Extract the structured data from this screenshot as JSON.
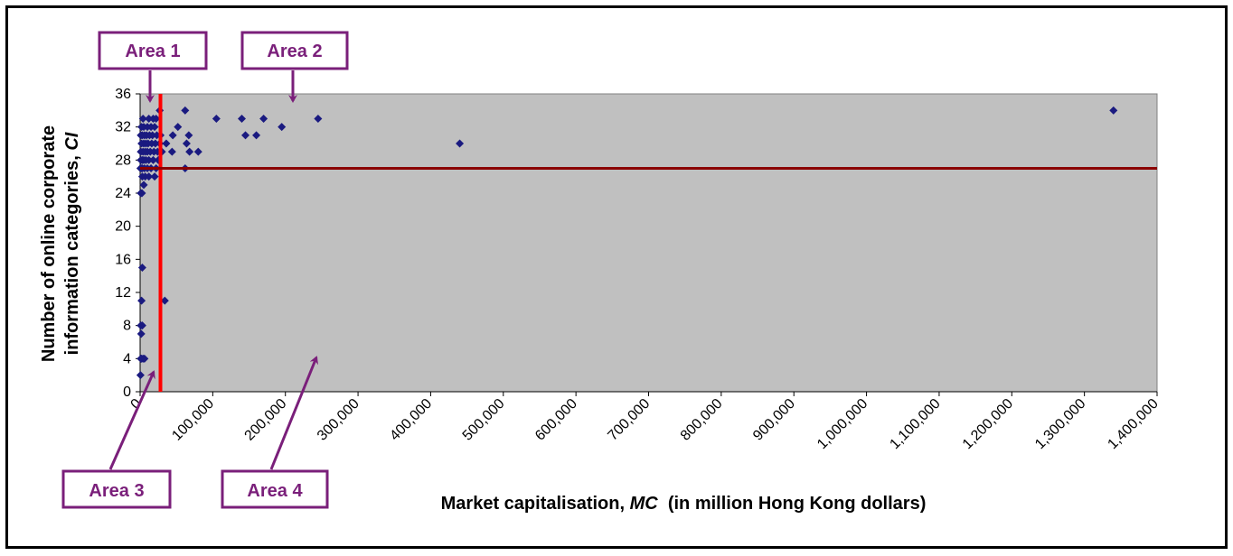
{
  "chart_data": {
    "type": "scatter",
    "title": "",
    "xlabel_prefix": "Market capitalisation, ",
    "xlabel_var": "MC",
    "xlabel_suffix": "  (in million Hong Kong dollars)",
    "ylabel_line1": "Number of online corporate",
    "ylabel_line2_prefix": "information categories, ",
    "ylabel_var": "CI",
    "xlim": [
      0,
      1400000
    ],
    "ylim": [
      0,
      36
    ],
    "x_ticks": [
      "0",
      "100,000",
      "200,000",
      "300,000",
      "400,000",
      "500,000",
      "600,000",
      "700,000",
      "800,000",
      "900,000",
      "1,000,000",
      "1,100,000",
      "1,200,000",
      "1,300,000",
      "1,400,000"
    ],
    "y_ticks": [
      "0",
      "4",
      "8",
      "12",
      "16",
      "20",
      "24",
      "28",
      "32",
      "36"
    ],
    "plot_background": "#c0c0c0",
    "point_color": "#1a1a80",
    "divider_color_vertical": "#ff0000",
    "divider_color_horizontal": "#8b0000",
    "threshold_x": 28000,
    "threshold_y": 27,
    "points": [
      [
        500,
        2
      ],
      [
        1000,
        4
      ],
      [
        2000,
        4
      ],
      [
        4000,
        4
      ],
      [
        6000,
        4
      ],
      [
        1500,
        7
      ],
      [
        3000,
        8
      ],
      [
        1000,
        8
      ],
      [
        2000,
        11
      ],
      [
        3000,
        15
      ],
      [
        34000,
        11
      ],
      [
        1000,
        24
      ],
      [
        2500,
        24
      ],
      [
        5000,
        25
      ],
      [
        3000,
        26
      ],
      [
        7000,
        26
      ],
      [
        12000,
        26
      ],
      [
        20000,
        26
      ],
      [
        500,
        27
      ],
      [
        1500,
        27
      ],
      [
        3000,
        27
      ],
      [
        6000,
        27
      ],
      [
        10000,
        27
      ],
      [
        15000,
        27
      ],
      [
        22000,
        27
      ],
      [
        62000,
        27
      ],
      [
        1000,
        28
      ],
      [
        3000,
        28
      ],
      [
        5000,
        28
      ],
      [
        8000,
        28
      ],
      [
        12000,
        28
      ],
      [
        18000,
        28
      ],
      [
        25000,
        28
      ],
      [
        1000,
        29
      ],
      [
        4000,
        29
      ],
      [
        7000,
        29
      ],
      [
        10000,
        29
      ],
      [
        14000,
        29
      ],
      [
        19000,
        29
      ],
      [
        24000,
        29
      ],
      [
        30000,
        29
      ],
      [
        44000,
        29
      ],
      [
        68000,
        29
      ],
      [
        80000,
        29
      ],
      [
        2000,
        30
      ],
      [
        5000,
        30
      ],
      [
        8000,
        30
      ],
      [
        11000,
        30
      ],
      [
        16000,
        30
      ],
      [
        21000,
        30
      ],
      [
        27000,
        30
      ],
      [
        36000,
        30
      ],
      [
        64000,
        30
      ],
      [
        440000,
        30
      ],
      [
        1000,
        31
      ],
      [
        3000,
        31
      ],
      [
        6000,
        31
      ],
      [
        9000,
        31
      ],
      [
        13000,
        31
      ],
      [
        17000,
        31
      ],
      [
        23000,
        31
      ],
      [
        28000,
        31
      ],
      [
        45000,
        31
      ],
      [
        67000,
        31
      ],
      [
        145000,
        31
      ],
      [
        160000,
        31
      ],
      [
        2000,
        32
      ],
      [
        5000,
        32
      ],
      [
        10000,
        32
      ],
      [
        15000,
        32
      ],
      [
        20000,
        32
      ],
      [
        52000,
        32
      ],
      [
        195000,
        32
      ],
      [
        4000,
        33
      ],
      [
        12000,
        33
      ],
      [
        18000,
        33
      ],
      [
        22000,
        33
      ],
      [
        105000,
        33
      ],
      [
        140000,
        33
      ],
      [
        170000,
        33
      ],
      [
        245000,
        33
      ],
      [
        27000,
        34
      ],
      [
        62000,
        34
      ],
      [
        1340000,
        34
      ]
    ]
  },
  "annotations": {
    "area1": "Area 1",
    "area2": "Area 2",
    "area3": "Area 3",
    "area4": "Area 4"
  }
}
